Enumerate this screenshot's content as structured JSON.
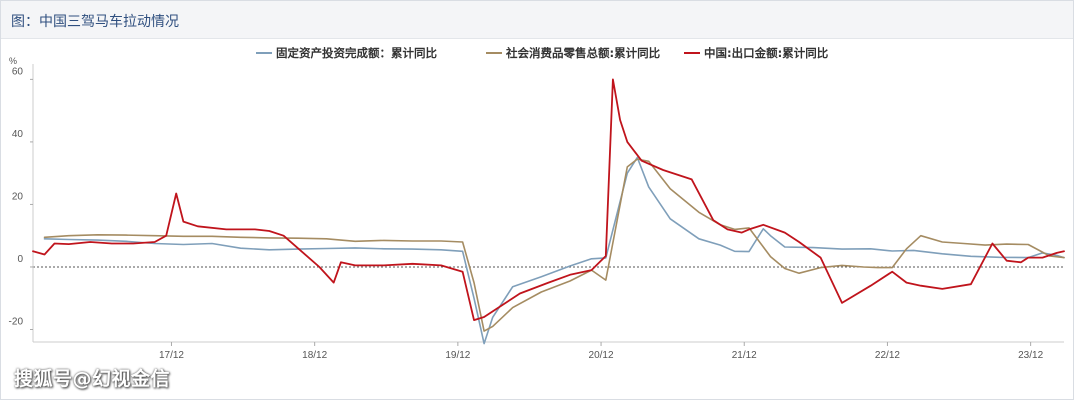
{
  "header": {
    "title": "图：中国三驾马车拉动情况"
  },
  "watermark": "搜狐号@幻视金信",
  "chart_data": {
    "type": "line",
    "unit": "%",
    "ylim": [
      -24,
      63
    ],
    "yticks": [
      -20,
      0,
      20,
      40,
      60
    ],
    "ytick_labels": [
      "-20",
      "0",
      "20",
      "40",
      "60"
    ],
    "xlim": [
      2016.95,
      2024.15
    ],
    "xticks": [
      2017.917,
      2018.917,
      2019.917,
      2020.917,
      2021.917,
      2022.917,
      2023.917
    ],
    "xtick_labels": [
      "17/12",
      "18/12",
      "19/12",
      "20/12",
      "21/12",
      "22/12",
      "23/12"
    ],
    "zero_line": "dotted",
    "legend_position": "top-center",
    "colors": {
      "fai": "#7f9fba",
      "retail": "#a58c62",
      "export": "#c0141c"
    },
    "series": [
      {
        "name": "固定资产投资完成额：累计同比",
        "key": "fai",
        "x": [
          2017.03,
          2017.2,
          2017.4,
          2017.6,
          2017.8,
          2018.0,
          2018.2,
          2018.4,
          2018.6,
          2018.8,
          2019.0,
          2019.2,
          2019.4,
          2019.6,
          2019.8,
          2019.95,
          2020.03,
          2020.1,
          2020.16,
          2020.3,
          2020.5,
          2020.7,
          2020.85,
          2020.95,
          2021.1,
          2021.17,
          2021.25,
          2021.4,
          2021.6,
          2021.75,
          2021.85,
          2021.95,
          2022.05,
          2022.1,
          2022.2,
          2022.4,
          2022.6,
          2022.8,
          2022.95,
          2023.1,
          2023.3,
          2023.5,
          2023.7,
          2023.9,
          2024.0,
          2024.1,
          2024.15
        ],
        "y": [
          9.0,
          8.8,
          8.6,
          8.2,
          7.5,
          7.2,
          7.5,
          6.0,
          5.5,
          5.7,
          5.9,
          6.1,
          5.8,
          5.7,
          5.5,
          5.0,
          -10.0,
          -24.5,
          -16.1,
          -6.3,
          -3.1,
          0.3,
          2.6,
          2.9,
          30.0,
          35.0,
          25.6,
          15.4,
          9.0,
          7.0,
          5.0,
          4.9,
          12.2,
          10.0,
          6.4,
          6.2,
          5.7,
          5.8,
          5.1,
          5.3,
          4.2,
          3.4,
          3.1,
          3.0,
          4.5,
          3.7,
          3.0
        ]
      },
      {
        "name": "社会消费品零售总额:累计同比",
        "key": "retail",
        "x": [
          2017.03,
          2017.2,
          2017.4,
          2017.6,
          2017.8,
          2018.0,
          2018.2,
          2018.4,
          2018.6,
          2018.8,
          2019.0,
          2019.2,
          2019.4,
          2019.6,
          2019.8,
          2019.95,
          2020.03,
          2020.1,
          2020.16,
          2020.3,
          2020.5,
          2020.7,
          2020.85,
          2020.95,
          2021.1,
          2021.17,
          2021.25,
          2021.4,
          2021.6,
          2021.75,
          2021.85,
          2021.95,
          2022.1,
          2022.2,
          2022.3,
          2022.45,
          2022.6,
          2022.75,
          2022.85,
          2022.95,
          2023.05,
          2023.15,
          2023.3,
          2023.45,
          2023.6,
          2023.75,
          2023.9,
          2024.05,
          2024.15
        ],
        "y": [
          9.5,
          10.0,
          10.3,
          10.2,
          10.0,
          9.8,
          9.8,
          9.5,
          9.3,
          9.2,
          9.0,
          8.2,
          8.5,
          8.3,
          8.3,
          8.0,
          -5.0,
          -20.5,
          -19.0,
          -13.0,
          -8.0,
          -4.5,
          -1.0,
          -4.2,
          32.0,
          34.5,
          33.8,
          25.0,
          17.5,
          13.5,
          12.0,
          12.5,
          3.3,
          -0.5,
          -2.0,
          -0.2,
          0.5,
          0.0,
          -0.2,
          -0.2,
          5.8,
          10.0,
          8.0,
          7.5,
          7.0,
          7.3,
          7.2,
          3.5,
          3.0
        ]
      },
      {
        "name": "中国:出口金额:累计同比",
        "key": "export",
        "x": [
          2016.95,
          2017.03,
          2017.1,
          2017.2,
          2017.35,
          2017.5,
          2017.65,
          2017.8,
          2017.88,
          2017.95,
          2018.0,
          2018.1,
          2018.3,
          2018.5,
          2018.6,
          2018.7,
          2018.95,
          2019.05,
          2019.1,
          2019.2,
          2019.4,
          2019.6,
          2019.8,
          2019.95,
          2020.03,
          2020.1,
          2020.2,
          2020.35,
          2020.55,
          2020.7,
          2020.85,
          2020.95,
          2021.0,
          2021.05,
          2021.1,
          2021.2,
          2021.35,
          2021.55,
          2021.7,
          2021.8,
          2021.9,
          2021.95,
          2022.05,
          2022.2,
          2022.3,
          2022.45,
          2022.6,
          2022.8,
          2022.95,
          2023.05,
          2023.15,
          2023.3,
          2023.5,
          2023.65,
          2023.75,
          2023.85,
          2023.9,
          2024.0,
          2024.1,
          2024.15
        ],
        "y": [
          5.0,
          4.0,
          7.5,
          7.3,
          8.0,
          7.5,
          7.5,
          8.0,
          10.0,
          23.5,
          14.5,
          13.0,
          12.0,
          12.0,
          11.5,
          10.0,
          0.0,
          -5.0,
          1.5,
          0.5,
          0.5,
          1.0,
          0.5,
          -1.5,
          -17.0,
          -16.0,
          -13.0,
          -8.5,
          -5.0,
          -2.5,
          -1.0,
          3.5,
          60.0,
          47.0,
          40.0,
          34.0,
          31.0,
          28.0,
          15.0,
          12.0,
          11.0,
          12.0,
          13.5,
          11.0,
          8.0,
          3.0,
          -11.5,
          -6.0,
          -1.5,
          -5.0,
          -6.0,
          -7.0,
          -5.5,
          7.5,
          2.0,
          1.5,
          3.0,
          3.0,
          4.5,
          5.0
        ]
      }
    ]
  }
}
